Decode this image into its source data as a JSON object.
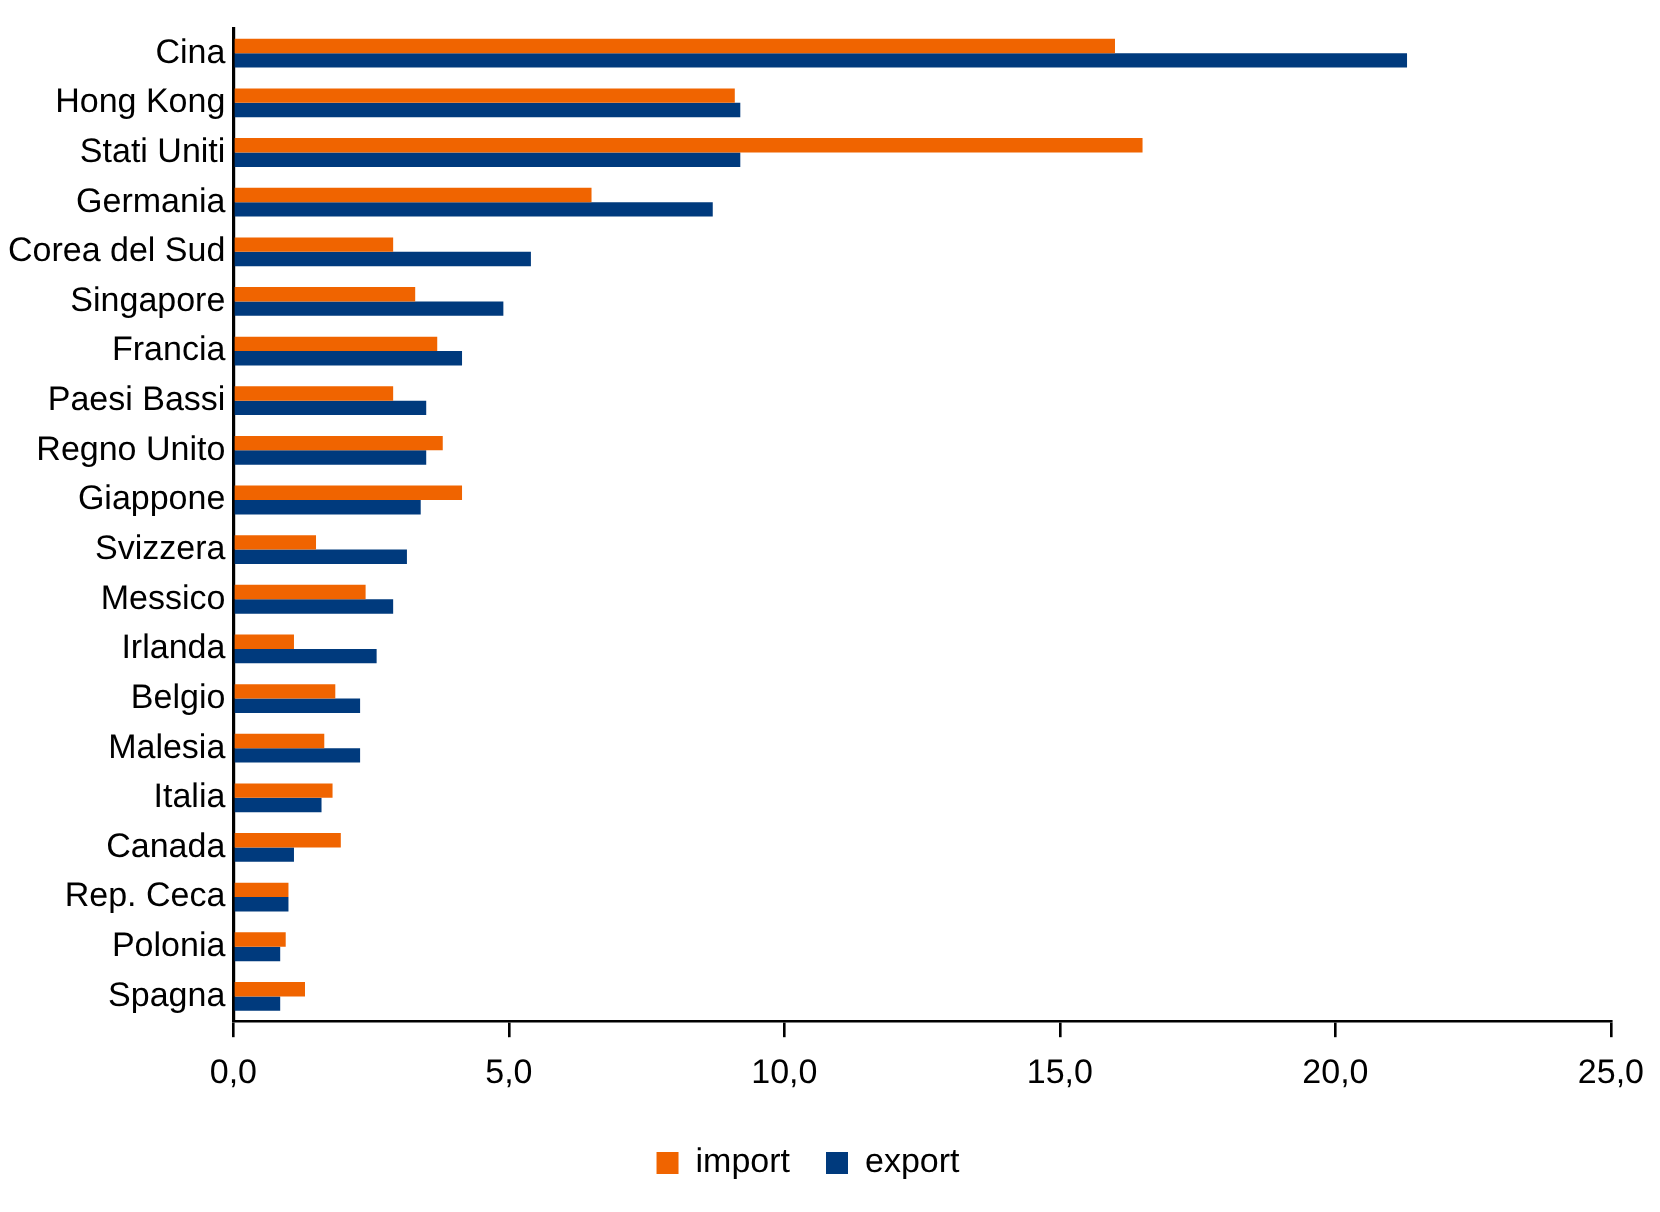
{
  "chart_data": {
    "type": "bar",
    "orientation": "horizontal",
    "categories": [
      "Cina",
      "Hong Kong",
      "Stati Uniti",
      "Germania",
      "Corea del Sud",
      "Singapore",
      "Francia",
      "Paesi Bassi",
      "Regno Unito",
      "Giappone",
      "Svizzera",
      "Messico",
      "Irlanda",
      "Belgio",
      "Malesia",
      "Italia",
      "Canada",
      "Rep. Ceca",
      "Polonia",
      "Spagna"
    ],
    "series": [
      {
        "name": "import",
        "color": "#f06400",
        "values": [
          16.0,
          9.1,
          16.5,
          6.5,
          2.9,
          3.3,
          3.7,
          2.9,
          3.8,
          4.15,
          1.5,
          2.4,
          1.1,
          1.85,
          1.65,
          1.8,
          1.95,
          1.0,
          0.95,
          1.3
        ]
      },
      {
        "name": "export",
        "color": "#003a7d",
        "values": [
          21.3,
          9.2,
          9.2,
          8.7,
          5.4,
          4.9,
          4.15,
          3.5,
          3.5,
          3.4,
          3.15,
          2.9,
          2.6,
          2.3,
          2.3,
          1.6,
          1.1,
          1.0,
          0.85,
          0.85
        ]
      }
    ],
    "xlim": [
      0,
      25
    ],
    "xticks": [
      {
        "value": 0,
        "label": "0,0"
      },
      {
        "value": 5,
        "label": "5,0"
      },
      {
        "value": 10,
        "label": "10,0"
      },
      {
        "value": 15,
        "label": "15,0"
      },
      {
        "value": 20,
        "label": "20,0"
      },
      {
        "value": 25,
        "label": "25,0"
      }
    ],
    "grid": false,
    "legend": "bottom"
  }
}
